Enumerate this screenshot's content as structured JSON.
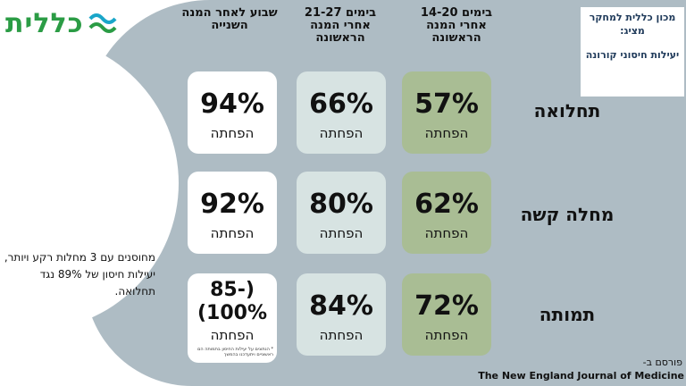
{
  "brand": {
    "name": "כללית",
    "primary": "#2b9c45",
    "mark_color": "#1aa6c9"
  },
  "institute": {
    "title": "מכון כללית למחקר מציג:",
    "subtitle": "יעילות חיסוני קורונה"
  },
  "columns": [
    {
      "header": "בימים 14-20 אחרי המנה הראשונה"
    },
    {
      "header": "בימים 21-27 אחרי המנה הראשונה"
    },
    {
      "header": "שבוע לאחר המנה השנייה"
    }
  ],
  "rows": [
    {
      "label": "תחלואה",
      "values": [
        "57%",
        "66%",
        "94%"
      ]
    },
    {
      "label": "מחלה קשה",
      "values": [
        "62%",
        "80%",
        "92%"
      ]
    },
    {
      "label": "תמותה",
      "values": [
        "72%",
        "84%",
        "(85-100%)"
      ]
    }
  ],
  "reduction_label": "הפחתה",
  "note": "מחוסנים עם 3 מחלות רקע ויותר, יעילות חיסון של 89% נגד תחלואה.",
  "footnote": "* הנתונים על יעילות החיסון בתמותה הם ראשוניים ויתעדכנו בהמשך",
  "published_by": "פורסם ב-",
  "journal": "The New England Journal of Medicine",
  "colors": {
    "background_shape": "#aebcc4",
    "card_mint": "#d7e3e2",
    "card_green": "#a9bd94"
  }
}
